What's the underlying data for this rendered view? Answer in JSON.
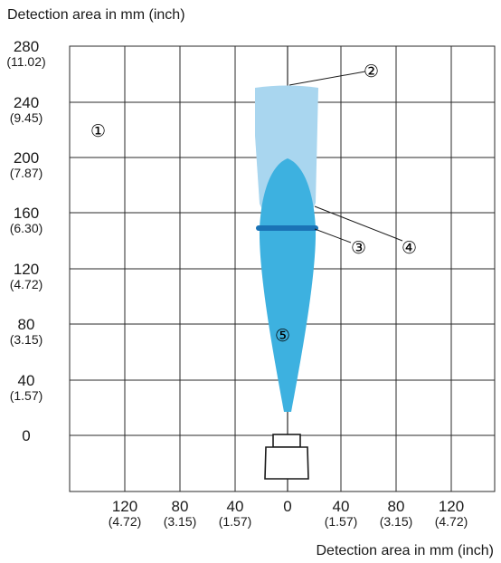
{
  "title_top": "Detection area in mm (inch)",
  "title_bottom": "Detection area in mm (inch)",
  "y_axis": [
    {
      "mm": "280",
      "inch": "(11.02)"
    },
    {
      "mm": "240",
      "inch": "(9.45)"
    },
    {
      "mm": "200",
      "inch": "(7.87)"
    },
    {
      "mm": "160",
      "inch": "(6.30)"
    },
    {
      "mm": "120",
      "inch": "(4.72)"
    },
    {
      "mm": "80",
      "inch": "(3.15)"
    },
    {
      "mm": "40",
      "inch": "(1.57)"
    },
    {
      "mm": "0",
      "inch": ""
    }
  ],
  "x_axis": [
    {
      "mm": "120",
      "inch": "(4.72)"
    },
    {
      "mm": "80",
      "inch": "(3.15)"
    },
    {
      "mm": "40",
      "inch": "(1.57)"
    },
    {
      "mm": "0",
      "inch": ""
    },
    {
      "mm": "40",
      "inch": "(1.57)"
    },
    {
      "mm": "80",
      "inch": "(3.15)"
    },
    {
      "mm": "120",
      "inch": "(4.72)"
    }
  ],
  "callouts": {
    "c1": "①",
    "c2": "②",
    "c3": "③",
    "c4": "④",
    "c5": "⑤"
  },
  "colors": {
    "light_blue": "#a9d6ef",
    "mid_blue": "#3db1e0",
    "dark_blue": "#1a73b6",
    "grid": "#2a2a2a"
  }
}
